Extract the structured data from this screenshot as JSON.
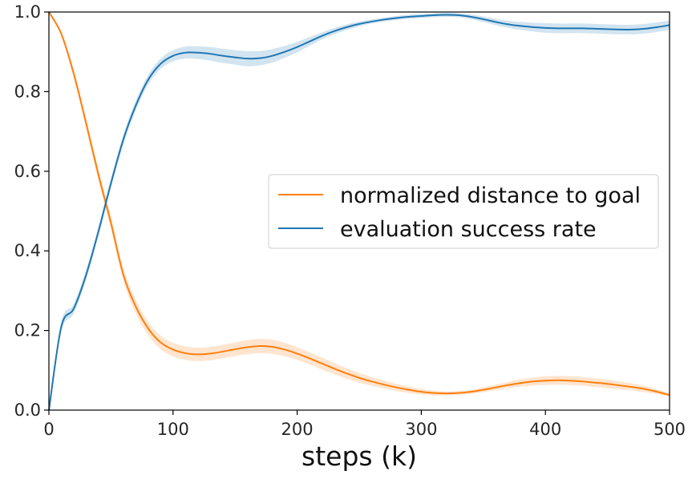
{
  "chart_data": {
    "type": "line",
    "title": "",
    "xlabel": "steps (k)",
    "ylabel": "",
    "xlim": [
      0,
      500
    ],
    "ylim": [
      0,
      1.0
    ],
    "xticks": [
      0,
      100,
      200,
      300,
      400,
      500
    ],
    "yticks": [
      0.0,
      0.2,
      0.4,
      0.6,
      0.8,
      1.0
    ],
    "grid": false,
    "legend_position": "center-right",
    "x": [
      0,
      10,
      20,
      30,
      40,
      50,
      60,
      70,
      80,
      90,
      100,
      110,
      120,
      130,
      140,
      150,
      160,
      170,
      180,
      190,
      200,
      210,
      220,
      230,
      240,
      250,
      260,
      270,
      280,
      290,
      300,
      310,
      320,
      330,
      340,
      350,
      360,
      370,
      380,
      390,
      400,
      410,
      420,
      430,
      440,
      450,
      460,
      470,
      480,
      490,
      500
    ],
    "series": [
      {
        "name": "normalized distance to goal",
        "color": "#ff7f0e",
        "values": [
          1.0,
          0.945,
          0.845,
          0.72,
          0.59,
          0.47,
          0.34,
          0.26,
          0.205,
          0.17,
          0.152,
          0.143,
          0.14,
          0.142,
          0.147,
          0.153,
          0.158,
          0.161,
          0.159,
          0.152,
          0.142,
          0.13,
          0.117,
          0.104,
          0.092,
          0.081,
          0.072,
          0.064,
          0.057,
          0.051,
          0.046,
          0.043,
          0.042,
          0.043,
          0.046,
          0.051,
          0.057,
          0.063,
          0.068,
          0.072,
          0.074,
          0.075,
          0.074,
          0.072,
          0.069,
          0.066,
          0.062,
          0.058,
          0.053,
          0.046,
          0.038
        ],
        "band": [
          0,
          0.006,
          0.01,
          0.012,
          0.014,
          0.016,
          0.016,
          0.017,
          0.017,
          0.017,
          0.017,
          0.017,
          0.017,
          0.017,
          0.017,
          0.017,
          0.018,
          0.018,
          0.018,
          0.017,
          0.016,
          0.015,
          0.015,
          0.014,
          0.013,
          0.012,
          0.011,
          0.01,
          0.009,
          0.008,
          0.007,
          0.006,
          0.005,
          0.005,
          0.005,
          0.006,
          0.007,
          0.008,
          0.009,
          0.01,
          0.011,
          0.011,
          0.011,
          0.011,
          0.011,
          0.011,
          0.01,
          0.009,
          0.008,
          0.006,
          0.005
        ]
      },
      {
        "name": "evaluation success rate",
        "color": "#1f77b4",
        "values": [
          0.0,
          0.21,
          0.255,
          0.34,
          0.45,
          0.57,
          0.68,
          0.765,
          0.83,
          0.87,
          0.89,
          0.898,
          0.898,
          0.895,
          0.89,
          0.886,
          0.883,
          0.884,
          0.89,
          0.9,
          0.912,
          0.926,
          0.94,
          0.952,
          0.962,
          0.97,
          0.976,
          0.981,
          0.985,
          0.988,
          0.99,
          0.992,
          0.993,
          0.992,
          0.988,
          0.982,
          0.975,
          0.969,
          0.965,
          0.962,
          0.96,
          0.959,
          0.959,
          0.959,
          0.958,
          0.957,
          0.956,
          0.956,
          0.958,
          0.962,
          0.967
        ],
        "band": [
          0,
          0.012,
          0.012,
          0.012,
          0.012,
          0.012,
          0.012,
          0.012,
          0.012,
          0.013,
          0.014,
          0.015,
          0.016,
          0.017,
          0.018,
          0.018,
          0.019,
          0.018,
          0.017,
          0.015,
          0.013,
          0.011,
          0.009,
          0.008,
          0.007,
          0.006,
          0.005,
          0.005,
          0.005,
          0.005,
          0.005,
          0.005,
          0.005,
          0.005,
          0.006,
          0.007,
          0.008,
          0.009,
          0.01,
          0.011,
          0.012,
          0.012,
          0.012,
          0.012,
          0.012,
          0.012,
          0.012,
          0.012,
          0.012,
          0.012,
          0.012
        ]
      }
    ]
  }
}
